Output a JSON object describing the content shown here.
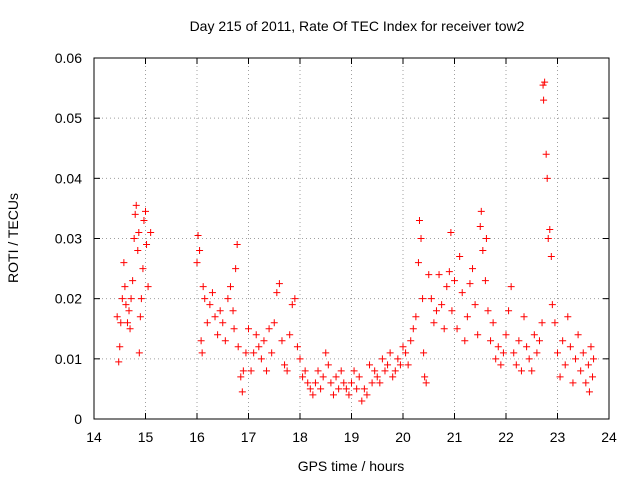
{
  "chart_data": {
    "type": "scatter",
    "title": "Day 215 of 2011, Rate Of TEC Index for receiver tow2",
    "xlabel": "GPS time / hours",
    "ylabel": "ROTI / TECUs",
    "xlim": [
      14,
      24
    ],
    "ylim": [
      0,
      0.06
    ],
    "xticks": [
      "14",
      "15",
      "16",
      "17",
      "18",
      "19",
      "20",
      "21",
      "22",
      "23",
      "24"
    ],
    "yticks": [
      "0",
      "0.01",
      "0.02",
      "0.03",
      "0.04",
      "0.05",
      "0.06"
    ],
    "grid": true,
    "marker": "+",
    "series": [
      {
        "name": "ROTI",
        "color": "#ff0000",
        "points": [
          [
            14.45,
            0.017
          ],
          [
            14.48,
            0.0095
          ],
          [
            14.5,
            0.012
          ],
          [
            14.52,
            0.016
          ],
          [
            14.55,
            0.02
          ],
          [
            14.58,
            0.026
          ],
          [
            14.6,
            0.022
          ],
          [
            14.62,
            0.019
          ],
          [
            14.65,
            0.016
          ],
          [
            14.68,
            0.018
          ],
          [
            14.7,
            0.015
          ],
          [
            14.72,
            0.02
          ],
          [
            14.75,
            0.023
          ],
          [
            14.78,
            0.03
          ],
          [
            14.8,
            0.034
          ],
          [
            14.82,
            0.0355
          ],
          [
            14.85,
            0.028
          ],
          [
            14.87,
            0.031
          ],
          [
            14.88,
            0.011
          ],
          [
            14.9,
            0.017
          ],
          [
            14.92,
            0.02
          ],
          [
            14.95,
            0.025
          ],
          [
            14.97,
            0.033
          ],
          [
            15.0,
            0.0345
          ],
          [
            15.02,
            0.029
          ],
          [
            15.05,
            0.022
          ],
          [
            15.1,
            0.031
          ],
          [
            16.0,
            0.026
          ],
          [
            16.02,
            0.0305
          ],
          [
            16.05,
            0.028
          ],
          [
            16.08,
            0.013
          ],
          [
            16.1,
            0.011
          ],
          [
            16.12,
            0.022
          ],
          [
            16.15,
            0.02
          ],
          [
            16.2,
            0.016
          ],
          [
            16.25,
            0.019
          ],
          [
            16.3,
            0.021
          ],
          [
            16.35,
            0.017
          ],
          [
            16.4,
            0.014
          ],
          [
            16.45,
            0.018
          ],
          [
            16.5,
            0.016
          ],
          [
            16.55,
            0.013
          ],
          [
            16.6,
            0.02
          ],
          [
            16.65,
            0.022
          ],
          [
            16.7,
            0.018
          ],
          [
            16.72,
            0.015
          ],
          [
            16.75,
            0.025
          ],
          [
            16.78,
            0.029
          ],
          [
            16.8,
            0.012
          ],
          [
            16.85,
            0.007
          ],
          [
            16.88,
            0.0045
          ],
          [
            16.9,
            0.008
          ],
          [
            16.95,
            0.011
          ],
          [
            17.0,
            0.015
          ],
          [
            17.05,
            0.008
          ],
          [
            17.1,
            0.011
          ],
          [
            17.15,
            0.014
          ],
          [
            17.2,
            0.012
          ],
          [
            17.25,
            0.01
          ],
          [
            17.3,
            0.013
          ],
          [
            17.35,
            0.008
          ],
          [
            17.4,
            0.015
          ],
          [
            17.45,
            0.011
          ],
          [
            17.5,
            0.016
          ],
          [
            17.55,
            0.021
          ],
          [
            17.6,
            0.0225
          ],
          [
            17.65,
            0.013
          ],
          [
            17.7,
            0.009
          ],
          [
            17.75,
            0.008
          ],
          [
            17.8,
            0.014
          ],
          [
            17.85,
            0.019
          ],
          [
            17.9,
            0.02
          ],
          [
            17.95,
            0.012
          ],
          [
            18.0,
            0.01
          ],
          [
            18.05,
            0.007
          ],
          [
            18.1,
            0.008
          ],
          [
            18.15,
            0.006
          ],
          [
            18.2,
            0.005
          ],
          [
            18.25,
            0.004
          ],
          [
            18.3,
            0.006
          ],
          [
            18.35,
            0.008
          ],
          [
            18.4,
            0.005
          ],
          [
            18.45,
            0.007
          ],
          [
            18.5,
            0.011
          ],
          [
            18.55,
            0.009
          ],
          [
            18.6,
            0.006
          ],
          [
            18.65,
            0.004
          ],
          [
            18.7,
            0.007
          ],
          [
            18.75,
            0.005
          ],
          [
            18.8,
            0.008
          ],
          [
            18.85,
            0.006
          ],
          [
            18.9,
            0.005
          ],
          [
            18.95,
            0.004
          ],
          [
            19.0,
            0.006
          ],
          [
            19.05,
            0.008
          ],
          [
            19.1,
            0.005
          ],
          [
            19.15,
            0.007
          ],
          [
            19.2,
            0.003
          ],
          [
            19.25,
            0.005
          ],
          [
            19.3,
            0.004
          ],
          [
            19.35,
            0.009
          ],
          [
            19.4,
            0.006
          ],
          [
            19.45,
            0.008
          ],
          [
            19.5,
            0.007
          ],
          [
            19.55,
            0.006
          ],
          [
            19.6,
            0.01
          ],
          [
            19.65,
            0.008
          ],
          [
            19.7,
            0.009
          ],
          [
            19.75,
            0.011
          ],
          [
            19.8,
            0.007
          ],
          [
            19.85,
            0.008
          ],
          [
            19.9,
            0.01
          ],
          [
            19.95,
            0.009
          ],
          [
            20.0,
            0.012
          ],
          [
            20.05,
            0.011
          ],
          [
            20.1,
            0.009
          ],
          [
            20.15,
            0.013
          ],
          [
            20.2,
            0.015
          ],
          [
            20.25,
            0.017
          ],
          [
            20.3,
            0.026
          ],
          [
            20.32,
            0.033
          ],
          [
            20.35,
            0.03
          ],
          [
            20.38,
            0.02
          ],
          [
            20.4,
            0.011
          ],
          [
            20.42,
            0.007
          ],
          [
            20.45,
            0.006
          ],
          [
            20.5,
            0.024
          ],
          [
            20.55,
            0.02
          ],
          [
            20.6,
            0.016
          ],
          [
            20.65,
            0.018
          ],
          [
            20.7,
            0.024
          ],
          [
            20.75,
            0.019
          ],
          [
            20.8,
            0.015
          ],
          [
            20.85,
            0.022
          ],
          [
            20.9,
            0.0245
          ],
          [
            20.93,
            0.031
          ],
          [
            20.95,
            0.018
          ],
          [
            21.0,
            0.023
          ],
          [
            21.05,
            0.015
          ],
          [
            21.1,
            0.027
          ],
          [
            21.15,
            0.021
          ],
          [
            21.2,
            0.013
          ],
          [
            21.25,
            0.017
          ],
          [
            21.3,
            0.0225
          ],
          [
            21.35,
            0.025
          ],
          [
            21.4,
            0.019
          ],
          [
            21.45,
            0.014
          ],
          [
            21.5,
            0.032
          ],
          [
            21.52,
            0.0345
          ],
          [
            21.55,
            0.028
          ],
          [
            21.6,
            0.023
          ],
          [
            21.62,
            0.03
          ],
          [
            21.65,
            0.018
          ],
          [
            21.7,
            0.013
          ],
          [
            21.75,
            0.016
          ],
          [
            21.8,
            0.01
          ],
          [
            21.85,
            0.012
          ],
          [
            21.9,
            0.009
          ],
          [
            21.95,
            0.011
          ],
          [
            22.0,
            0.014
          ],
          [
            22.05,
            0.018
          ],
          [
            22.1,
            0.022
          ],
          [
            22.15,
            0.011
          ],
          [
            22.2,
            0.009
          ],
          [
            22.25,
            0.013
          ],
          [
            22.3,
            0.008
          ],
          [
            22.35,
            0.017
          ],
          [
            22.4,
            0.012
          ],
          [
            22.45,
            0.01
          ],
          [
            22.5,
            0.008
          ],
          [
            22.55,
            0.014
          ],
          [
            22.6,
            0.011
          ],
          [
            22.65,
            0.013
          ],
          [
            22.7,
            0.016
          ],
          [
            22.72,
            0.0555
          ],
          [
            22.73,
            0.053
          ],
          [
            22.75,
            0.056
          ],
          [
            22.78,
            0.044
          ],
          [
            22.8,
            0.04
          ],
          [
            22.82,
            0.03
          ],
          [
            22.85,
            0.0315
          ],
          [
            22.88,
            0.027
          ],
          [
            22.9,
            0.019
          ],
          [
            22.95,
            0.016
          ],
          [
            23.0,
            0.011
          ],
          [
            23.05,
            0.007
          ],
          [
            23.1,
            0.013
          ],
          [
            23.15,
            0.009
          ],
          [
            23.2,
            0.017
          ],
          [
            23.25,
            0.012
          ],
          [
            23.3,
            0.006
          ],
          [
            23.35,
            0.01
          ],
          [
            23.4,
            0.014
          ],
          [
            23.45,
            0.008
          ],
          [
            23.5,
            0.011
          ],
          [
            23.55,
            0.006
          ],
          [
            23.6,
            0.009
          ],
          [
            23.62,
            0.0045
          ],
          [
            23.65,
            0.012
          ],
          [
            23.68,
            0.007
          ],
          [
            23.7,
            0.01
          ]
        ]
      }
    ]
  }
}
